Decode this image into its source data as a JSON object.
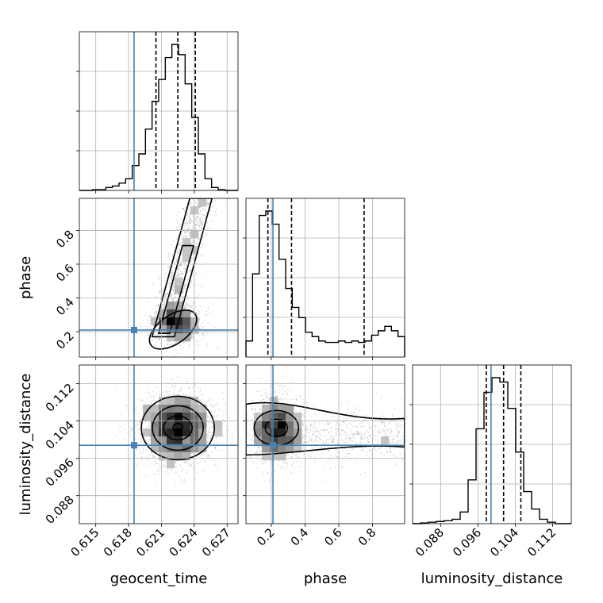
{
  "chart_data": {
    "type": "corner",
    "title": "",
    "parameters": [
      {
        "key": "geocent_time",
        "label": "geocent_time",
        "range": [
          0.6135,
          0.628
        ],
        "ticks": [
          0.615,
          0.618,
          0.621,
          0.624,
          0.627
        ],
        "tick_labels": [
          "0.615",
          "0.618",
          "0.621",
          "0.624",
          "0.627"
        ],
        "truth": 0.6185,
        "quantiles": [
          0.6205,
          0.6225,
          0.6241
        ]
      },
      {
        "key": "phase",
        "label": "phase",
        "range": [
          0.05,
          0.99
        ],
        "ticks": [
          0.2,
          0.4,
          0.6,
          0.8
        ],
        "tick_labels": [
          "0.2",
          "0.4",
          "0.6",
          "0.8"
        ],
        "truth": 0.21,
        "quantiles": [
          0.18,
          0.32,
          0.75
        ]
      },
      {
        "key": "luminosity_distance",
        "label": "luminosity_distance",
        "range": [
          0.082,
          0.116
        ],
        "ticks": [
          0.088,
          0.096,
          0.104,
          0.112
        ],
        "tick_labels": [
          "0.088",
          "0.096",
          "0.104",
          "0.112"
        ],
        "truth": 0.0988,
        "quantiles": [
          0.0978,
          0.1015,
          0.1052
        ]
      }
    ],
    "histograms": {
      "geocent_time": [
        0,
        0,
        0.005,
        0.005,
        0.02,
        0.03,
        0.05,
        0.08,
        0.17,
        0.25,
        0.42,
        0.61,
        0.76,
        0.91,
        1.0,
        0.93,
        0.73,
        0.5,
        0.25,
        0.08,
        0.02,
        0.005,
        0,
        0
      ],
      "phase": [
        0.11,
        0.57,
        0.97,
        1.0,
        0.91,
        0.67,
        0.47,
        0.34,
        0.27,
        0.17,
        0.14,
        0.11,
        0.1,
        0.1,
        0.11,
        0.1,
        0.11,
        0.1,
        0.11,
        0.15,
        0.18,
        0.21,
        0.18,
        0.14
      ],
      "luminosity_distance": [
        0,
        0.005,
        0.01,
        0.015,
        0.02,
        0.03,
        0.08,
        0.3,
        0.65,
        0.9,
        1.0,
        0.97,
        0.79,
        0.49,
        0.22,
        0.1,
        0.03,
        0.01,
        0,
        0
      ]
    },
    "scatter_2d": {
      "phase_vs_geocent_time": {
        "center": [
          0.6225,
          0.25
        ],
        "spread": [
          0.0012,
          0.06
        ],
        "tail_slope": 70,
        "tail_width": 0.0012
      },
      "luminosity_distance_vs_geocent_time": {
        "center": [
          0.6225,
          0.1025
        ],
        "spread": [
          0.0017,
          0.0038
        ]
      },
      "luminosity_distance_vs_phase": {
        "center": [
          0.23,
          0.1025
        ],
        "spread": [
          0.12,
          0.0035
        ],
        "tail": true
      }
    },
    "grid": true,
    "truth_color": "#4682b4",
    "hist_color": "#000000"
  }
}
